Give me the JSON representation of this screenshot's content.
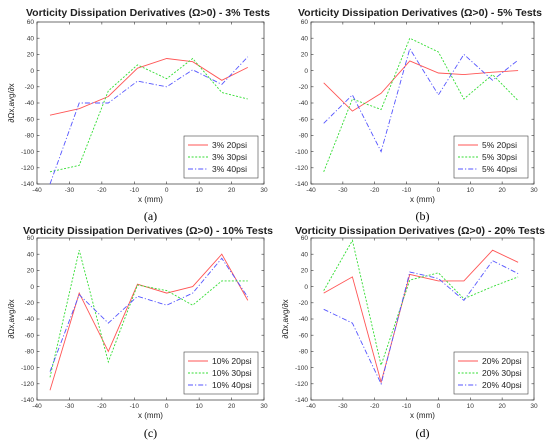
{
  "chart_data": [
    {
      "type": "line",
      "title": "Vorticity Dissipation Derivatives (Ω>0) - 3% Tests",
      "caption": "(a)",
      "xlabel": "x (mm)",
      "ylabel": "∂Ωx,avg/∂x",
      "xlim": [
        -40,
        30
      ],
      "ylim": [
        -140,
        60
      ],
      "xticks": [
        "-40",
        "-30",
        "-20",
        "-10",
        "0",
        "10",
        "20",
        "30"
      ],
      "yticks": [
        "60",
        "40",
        "20",
        "0",
        "-20",
        "-40",
        "-60",
        "-80",
        "-100",
        "-120",
        "-140"
      ],
      "legend_position": "bottom-right",
      "series": [
        {
          "name": "3% 20psi",
          "color": "#ff5555",
          "dash": "solid",
          "x": [
            -36,
            -27,
            -18,
            -9,
            0,
            8,
            17,
            25
          ],
          "y": [
            -55,
            -47,
            -32,
            3,
            15,
            11,
            -12,
            4
          ]
        },
        {
          "name": "3% 30psi",
          "color": "#33dd33",
          "dash": "dotted",
          "x": [
            -36,
            -27,
            -18,
            -9,
            0,
            8,
            17,
            25
          ],
          "y": [
            -125,
            -117,
            -25,
            7,
            -10,
            15,
            -27,
            -35
          ]
        },
        {
          "name": "3% 40psi",
          "color": "#5555ff",
          "dash": "dashdot",
          "x": [
            -36,
            -27,
            -18,
            -9,
            0,
            8,
            17,
            25
          ],
          "y": [
            -140,
            -40,
            -40,
            -13,
            -20,
            1,
            -17,
            17
          ]
        }
      ]
    },
    {
      "type": "line",
      "title": "Vorticity Dissipation Derivatives (Ω>0) - 5% Tests",
      "caption": "(b)",
      "xlabel": "x (mm)",
      "ylabel": "",
      "xlim": [
        -40,
        30
      ],
      "ylim": [
        -140,
        60
      ],
      "xticks": [
        "-40",
        "-30",
        "-20",
        "-10",
        "0",
        "10",
        "20",
        "30"
      ],
      "yticks": [
        "60",
        "40",
        "20",
        "0",
        "-20",
        "-40",
        "-60",
        "-80",
        "-100",
        "-120",
        "-140"
      ],
      "legend_position": "bottom-right",
      "series": [
        {
          "name": "5% 20psi",
          "color": "#ff5555",
          "dash": "solid",
          "x": [
            -36,
            -27,
            -18,
            -9,
            0,
            8,
            17,
            25
          ],
          "y": [
            -15,
            -50,
            -28,
            12,
            -3,
            -5,
            -2,
            0
          ]
        },
        {
          "name": "5% 30psi",
          "color": "#33dd33",
          "dash": "dotted",
          "x": [
            -36,
            -27,
            -18,
            -9,
            0,
            8,
            17,
            25
          ],
          "y": [
            -125,
            -35,
            -48,
            40,
            23,
            -35,
            -5,
            -37
          ]
        },
        {
          "name": "5% 40psi",
          "color": "#5555ff",
          "dash": "dashdot",
          "x": [
            -36,
            -27,
            -18,
            -9,
            0,
            8,
            17,
            25
          ],
          "y": [
            -65,
            -30,
            -100,
            27,
            -30,
            20,
            -12,
            13
          ]
        }
      ]
    },
    {
      "type": "line",
      "title": "Vorticity Dissipation Derivatives (Ω>0) - 10% Tests",
      "caption": "(c)",
      "xlabel": "x (mm)",
      "ylabel": "∂Ωx,avg/∂x",
      "xlim": [
        -40,
        30
      ],
      "ylim": [
        -140,
        60
      ],
      "xticks": [
        "-40",
        "-30",
        "-20",
        "-10",
        "0",
        "10",
        "20",
        "30"
      ],
      "yticks": [
        "60",
        "40",
        "20",
        "0",
        "-20",
        "-40",
        "-60",
        "-80",
        "-100",
        "-120",
        "-140"
      ],
      "legend_position": "bottom-right",
      "series": [
        {
          "name": "10% 20psi",
          "color": "#ff5555",
          "dash": "solid",
          "x": [
            -36,
            -27,
            -18,
            -9,
            0,
            8,
            17,
            25
          ],
          "y": [
            -128,
            -8,
            -80,
            3,
            -8,
            0,
            40,
            -17
          ]
        },
        {
          "name": "10% 30psi",
          "color": "#33dd33",
          "dash": "dotted",
          "x": [
            -36,
            -27,
            -18,
            -9,
            0,
            8,
            17,
            25
          ],
          "y": [
            -112,
            45,
            -93,
            2,
            -5,
            -23,
            7,
            7
          ]
        },
        {
          "name": "10% 40psi",
          "color": "#5555ff",
          "dash": "dashdot",
          "x": [
            -36,
            -27,
            -18,
            -9,
            0,
            8,
            17,
            25
          ],
          "y": [
            -105,
            -10,
            -45,
            -12,
            -23,
            -8,
            35,
            -13
          ]
        }
      ]
    },
    {
      "type": "line",
      "title": "Vorticity Dissipation Derivatives (Ω>0) - 20% Tests",
      "caption": "(d)",
      "xlabel": "x (mm)",
      "ylabel": "∂Ωx,avg/∂x",
      "xlim": [
        -40,
        30
      ],
      "ylim": [
        -140,
        60
      ],
      "xticks": [
        "-40",
        "-30",
        "-20",
        "-10",
        "0",
        "10",
        "20",
        "30"
      ],
      "yticks": [
        "60",
        "40",
        "20",
        "0",
        "-20",
        "-40",
        "-60",
        "-80",
        "-100",
        "-120",
        "-140"
      ],
      "legend_position": "bottom-right",
      "series": [
        {
          "name": "20% 20psi",
          "color": "#ff5555",
          "dash": "solid",
          "x": [
            -36,
            -27,
            -18,
            -9,
            0,
            8,
            17,
            25
          ],
          "y": [
            -8,
            12,
            -118,
            15,
            7,
            7,
            45,
            30
          ]
        },
        {
          "name": "20% 30psi",
          "color": "#33dd33",
          "dash": "dotted",
          "x": [
            -36,
            -27,
            -18,
            -9,
            0,
            8,
            17,
            25
          ],
          "y": [
            -5,
            57,
            -97,
            8,
            17,
            -15,
            0,
            12
          ]
        },
        {
          "name": "20% 40psi",
          "color": "#5555ff",
          "dash": "dashdot",
          "x": [
            -36,
            -27,
            -18,
            -9,
            0,
            8,
            17,
            25
          ],
          "y": [
            -28,
            -45,
            -120,
            18,
            10,
            -17,
            32,
            16
          ]
        }
      ]
    }
  ]
}
